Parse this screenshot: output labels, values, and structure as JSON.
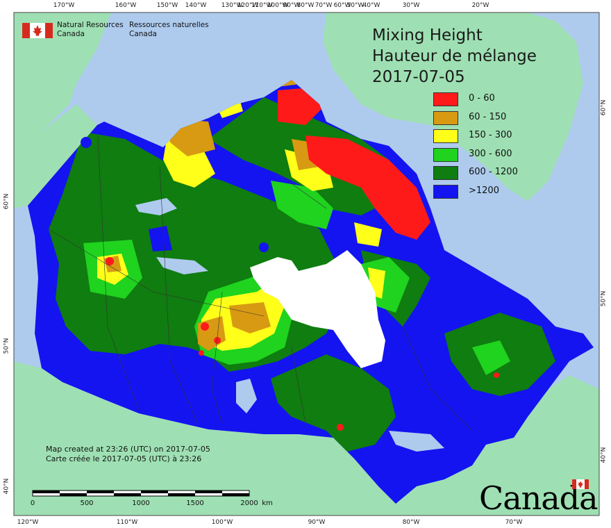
{
  "title": {
    "line1": "Mixing Height",
    "line2": "Hauteur de mélange",
    "date": "2017-07-05"
  },
  "legend": {
    "items": [
      {
        "label": "0 - 60",
        "color": "#ff1a1a"
      },
      {
        "label": "60 - 150",
        "color": "#d89a12"
      },
      {
        "label": "150 - 300",
        "color": "#ffff1a"
      },
      {
        "label": "300 - 600",
        "color": "#1fd31f"
      },
      {
        "label": "600 - 1200",
        "color": "#0f7d0f"
      },
      {
        "label": ">1200",
        "color": "#1414f0"
      }
    ]
  },
  "agency": {
    "en_line1": "Natural Resources",
    "en_line2": "Canada",
    "fr_line1": "Ressources naturelles",
    "fr_line2": "Canada"
  },
  "credit": {
    "en": "Map created at 23:26 (UTC) on 2017-07-05",
    "fr": "Carte créée le 2017-07-05 (UTC) à 23:26"
  },
  "scale_bar": {
    "labels": [
      "0",
      "500",
      "1000",
      "1500",
      "2000"
    ],
    "unit": "km"
  },
  "wordmark": "Canada",
  "graticule": {
    "top": [
      "170°W",
      "160°W",
      "150°W",
      "140°W",
      "130°W",
      "120°W",
      "110°W",
      "100°W",
      "90°W",
      "80°W",
      "70°W",
      "60°W",
      "50°W",
      "40°W",
      "30°W",
      "20°W"
    ],
    "bottom": [
      "120°W",
      "110°W",
      "100°W",
      "90°W",
      "80°W",
      "70°W"
    ],
    "left": [
      "60°N",
      "50°N",
      "40°N"
    ],
    "right": [
      "60°N",
      "50°N",
      "40°N"
    ]
  },
  "colors": {
    "ocean": "#aecbee",
    "foreign_land": "#9ee0b3",
    "hudson_bay": "#ffffff",
    "lakes": "#aecbee"
  }
}
